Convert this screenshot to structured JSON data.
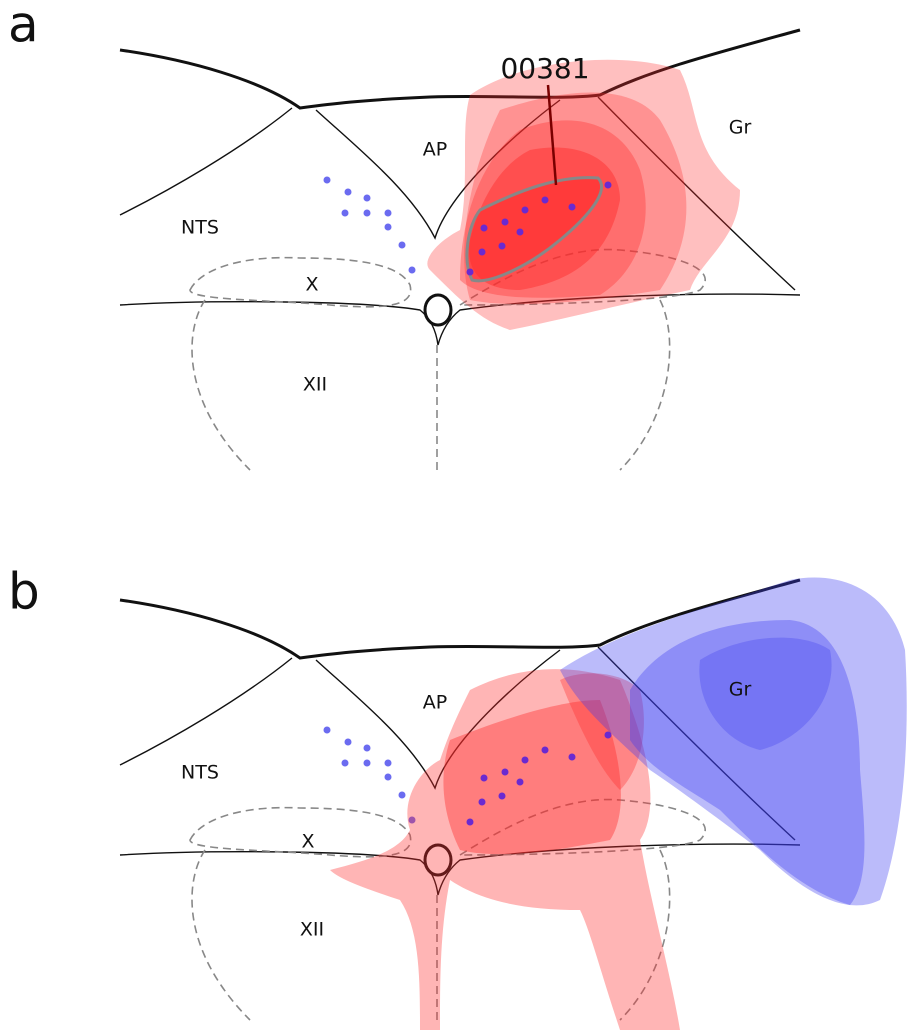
{
  "panels": [
    {
      "label": "a",
      "regions": [
        "NTS",
        "AP",
        "Gr",
        "X",
        "XII"
      ],
      "annotation": "00381"
    },
    {
      "label": "b",
      "regions": [
        "NTS",
        "AP",
        "Gr",
        "X",
        "XII"
      ]
    }
  ]
}
